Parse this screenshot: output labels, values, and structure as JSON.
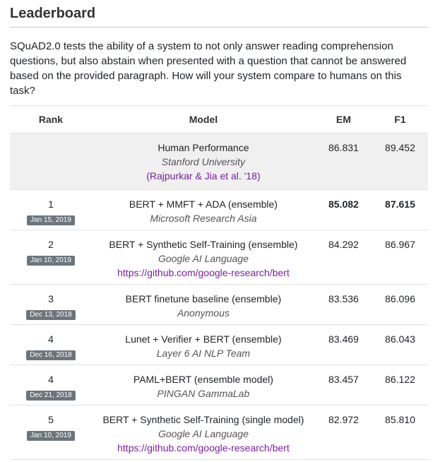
{
  "section": {
    "title": "Leaderboard",
    "description": "SQuAD2.0 tests the ability of a system to not only answer reading comprehension questions, but also abstain when presented with a question that cannot be answered based on the provided paragraph. How will your system compare to humans on this task?"
  },
  "table": {
    "headers": {
      "rank": "Rank",
      "model": "Model",
      "em": "EM",
      "f1": "F1"
    },
    "human": {
      "model": "Human Performance",
      "institution": "Stanford University",
      "reference": "(Rajpurkar & Jia et al. '18)",
      "em": "86.831",
      "f1": "89.452"
    },
    "rows": [
      {
        "rank": "1",
        "date": "Jan 15, 2019",
        "model": "BERT + MMFT + ADA (ensemble)",
        "institution": "Microsoft Research Asia",
        "link": "",
        "em": "85.082",
        "f1": "87.615",
        "best": true
      },
      {
        "rank": "2",
        "date": "Jan 10, 2019",
        "model": "BERT + Synthetic Self-Training (ensemble)",
        "institution": "Google AI Language",
        "link": "https://github.com/google-research/bert",
        "em": "84.292",
        "f1": "86.967",
        "best": false
      },
      {
        "rank": "3",
        "date": "Dec 13, 2018",
        "model": "BERT finetune baseline (ensemble)",
        "institution": "Anonymous",
        "link": "",
        "em": "83.536",
        "f1": "86.096",
        "best": false
      },
      {
        "rank": "4",
        "date": "Dec 16, 2018",
        "model": "Lunet + Verifier + BERT (ensemble)",
        "institution": "Layer 6 AI NLP Team",
        "link": "",
        "em": "83.469",
        "f1": "86.043",
        "best": false
      },
      {
        "rank": "4",
        "date": "Dec 21, 2018",
        "model": "PAML+BERT (ensemble model)",
        "institution": "PINGAN GammaLab",
        "link": "",
        "em": "83.457",
        "f1": "86.122",
        "best": false
      },
      {
        "rank": "5",
        "date": "Jan 10, 2019",
        "model": "BERT + Synthetic Self-Training (single model)",
        "institution": "Google AI Language",
        "link": "https://github.com/google-research/bert",
        "em": "82.972",
        "f1": "85.810",
        "best": false
      }
    ]
  }
}
